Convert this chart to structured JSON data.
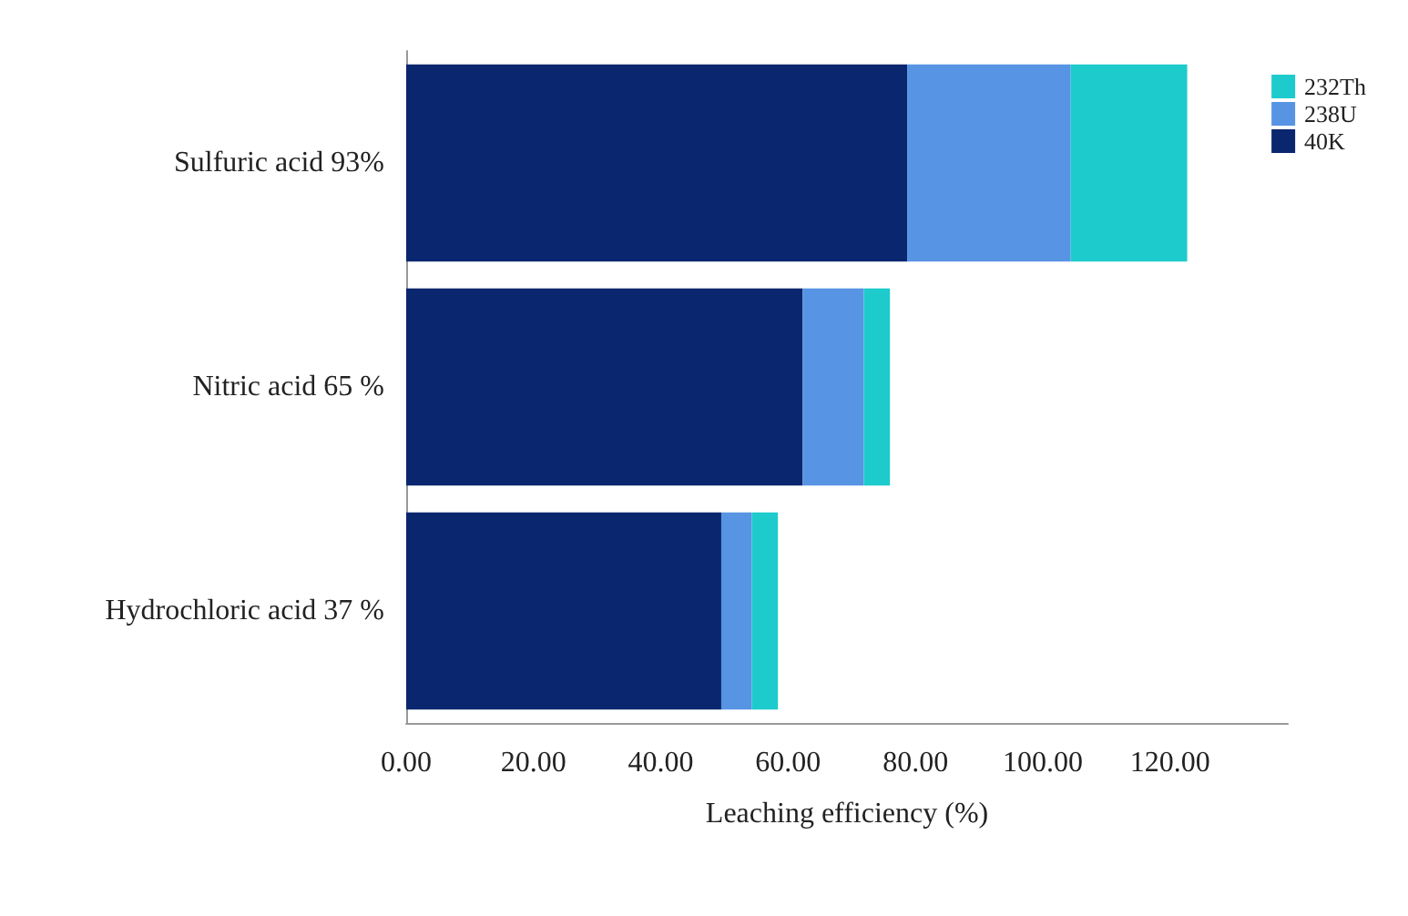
{
  "chart_data": {
    "type": "bar",
    "orientation": "horizontal",
    "stacked": true,
    "xlabel": "Leaching efficiency (%)",
    "categories": [
      "Sulfuric acid 93%",
      "Nitric acid 65 %",
      "Hydrochloric acid 37 %"
    ],
    "series": [
      {
        "name": "40K",
        "color": "#0a266e",
        "values": [
          78.7,
          62.3,
          49.5
        ]
      },
      {
        "name": "238U",
        "color": "#5794e4",
        "values": [
          25.7,
          9.6,
          4.8
        ]
      },
      {
        "name": "232Th",
        "color": "#1ecbcc",
        "values": [
          18.3,
          4.1,
          4.1
        ]
      }
    ],
    "xlim": [
      0,
      138.5
    ],
    "xticks": [
      {
        "value": 0,
        "label": "0.00"
      },
      {
        "value": 20,
        "label": "20.00"
      },
      {
        "value": 40,
        "label": "40.00"
      },
      {
        "value": 60,
        "label": "60.00"
      },
      {
        "value": 80,
        "label": "80.00"
      },
      {
        "value": 100,
        "label": "100.00"
      },
      {
        "value": 120,
        "label": "120.00"
      }
    ],
    "grid": false,
    "legend": "top right"
  }
}
